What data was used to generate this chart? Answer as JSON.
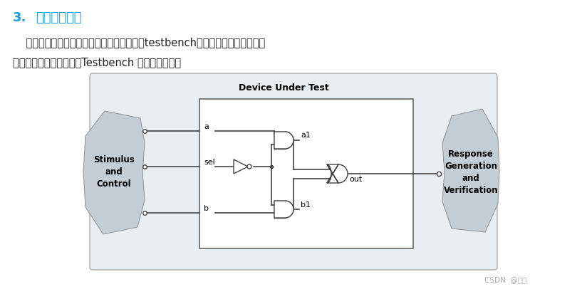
{
  "bg_color": "#ffffff",
  "title_color": "#1a9fde",
  "para_color": "#222222",
  "diagram_bg": "#e8eef2",
  "diagram_border": "#aaaaaa",
  "dut_box_color": "#dde8ee",
  "dut_border": "#666666",
  "gate_border": "#444444",
  "blob_color": "#c5cdd4",
  "blob_border": "#999999",
  "line_color": "#444444",
  "csdn_color": "#aaaaaa",
  "title_num": "3.",
  "title_text": "编写验证代码",
  "para1": "    要验证设计部分正确性，需要另外编写一段testbench代码，因为设计代码的输",
  "para2": "入信号必须从外部提供。Testbench 大致结构如下：",
  "csdn_text": "CSDN  @移知",
  "stimulus_text": "Stimulus\nand\nControl",
  "response_text": "Response\nGeneration\nand\nVerification",
  "dut_title": "Device Under Test"
}
